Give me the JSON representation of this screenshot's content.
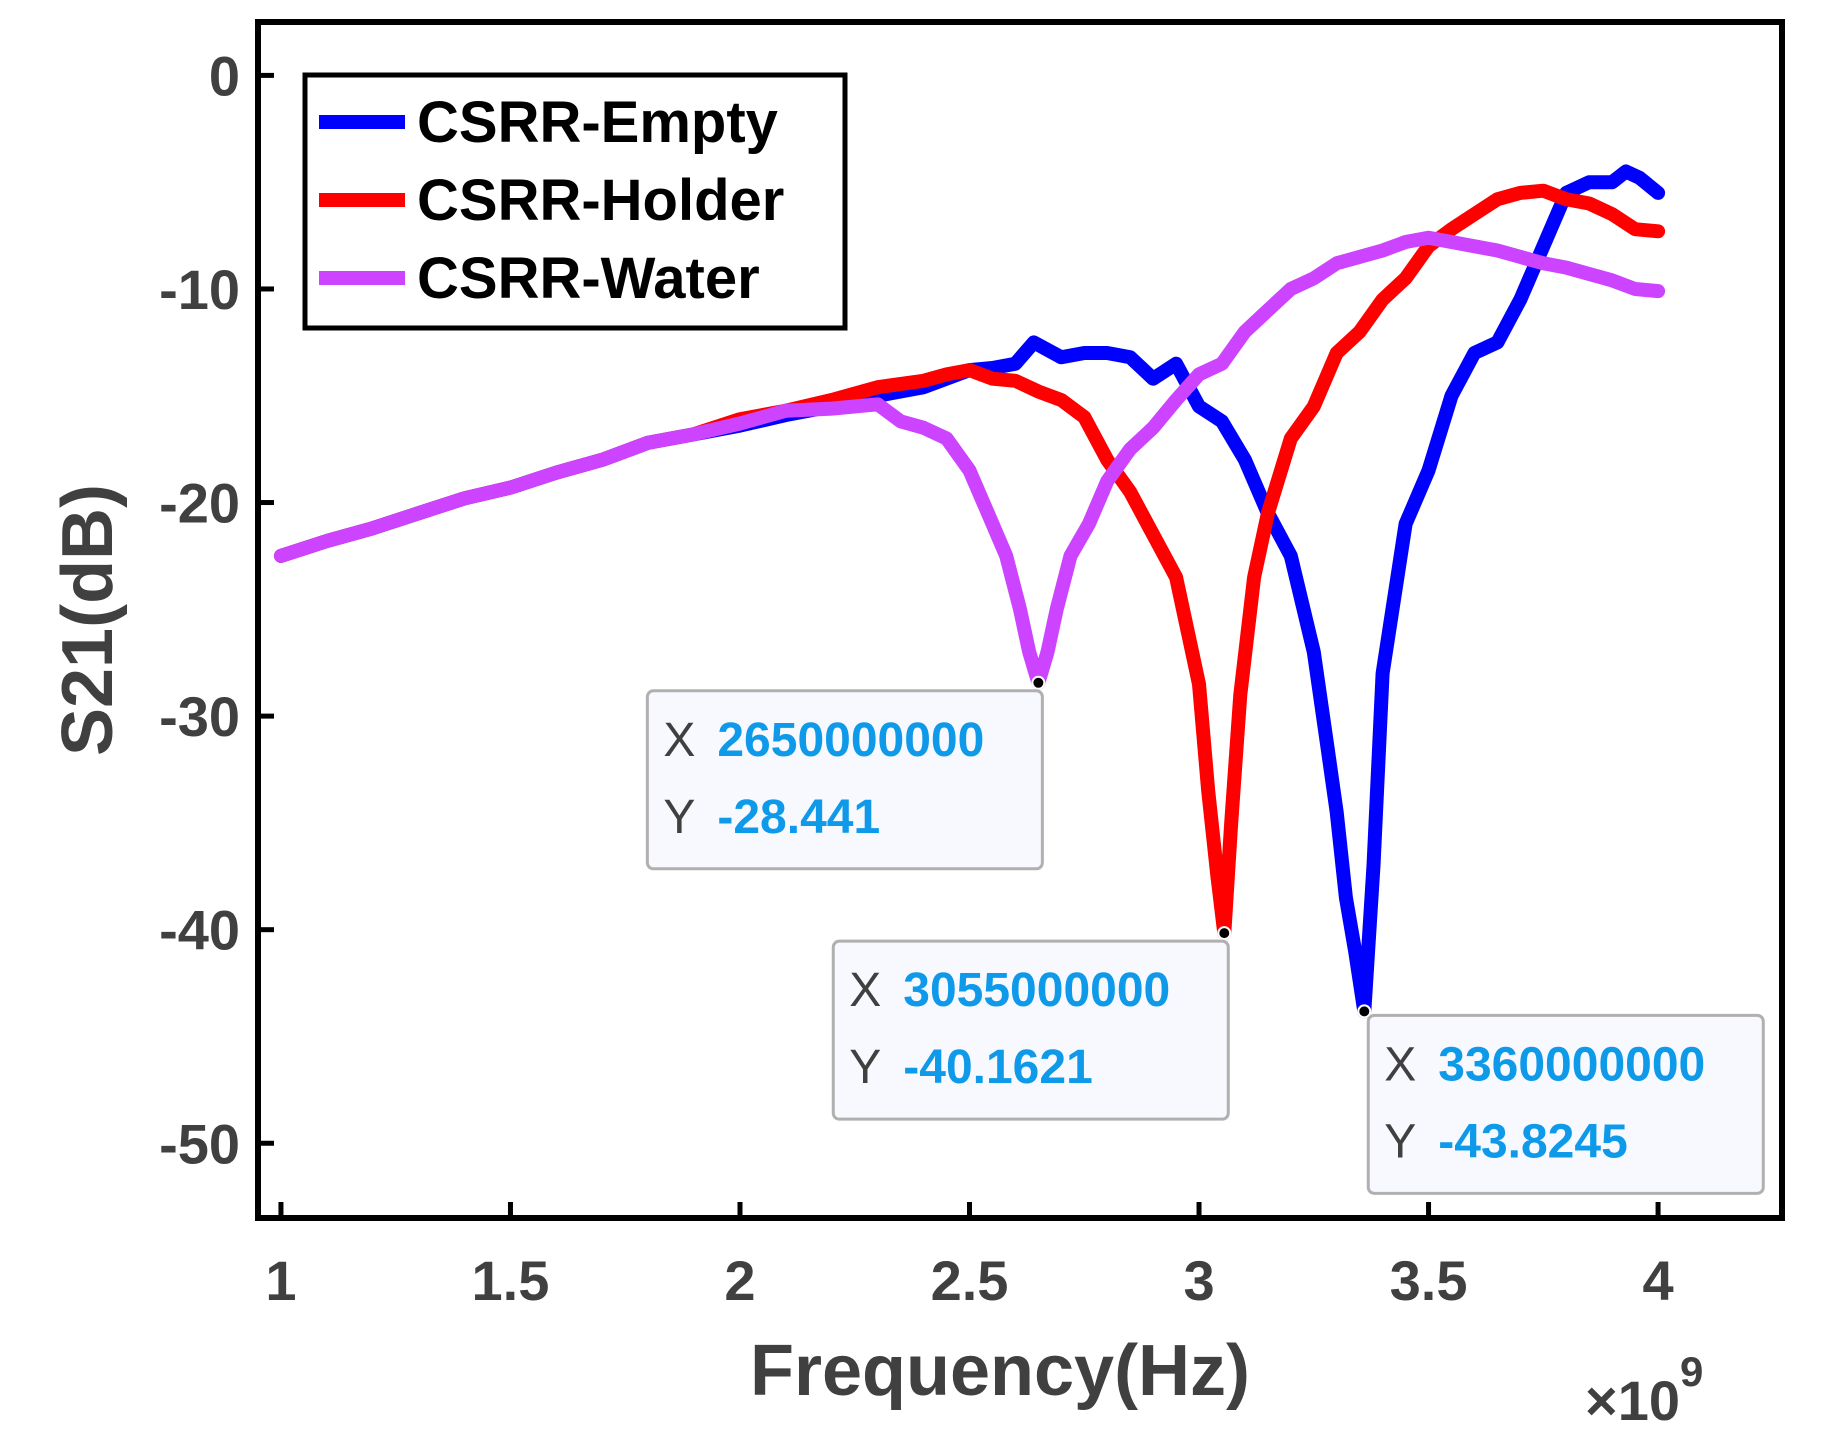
{
  "chart_data": {
    "type": "line",
    "xlabel": "Frequency(Hz)",
    "ylabel": "S21(dB)",
    "x_exponent_label": "×10",
    "x_exponent_power": "9",
    "xlim": [
      0.95,
      4.27
    ],
    "ylim": [
      -53.5,
      2.5
    ],
    "x_ticks": [
      1,
      1.5,
      2,
      2.5,
      3,
      3.5,
      4
    ],
    "x_tick_labels": [
      "1",
      "1.5",
      "2",
      "2.5",
      "3",
      "3.5",
      "4"
    ],
    "y_ticks": [
      0,
      -10,
      -20,
      -30,
      -40,
      -50
    ],
    "y_tick_labels": [
      "0",
      "-10",
      "-20",
      "-30",
      "-40",
      "-50"
    ],
    "legend_position": "top-left",
    "grid": false,
    "series": [
      {
        "name": "CSRR-Empty",
        "color": "#0000ff",
        "x": [
          1.0,
          1.1,
          1.2,
          1.3,
          1.4,
          1.5,
          1.6,
          1.7,
          1.8,
          1.9,
          2.0,
          2.1,
          2.2,
          2.3,
          2.4,
          2.5,
          2.55,
          2.6,
          2.64,
          2.7,
          2.75,
          2.8,
          2.85,
          2.9,
          2.95,
          3.0,
          3.05,
          3.1,
          3.15,
          3.2,
          3.25,
          3.28,
          3.3,
          3.32,
          3.34,
          3.36,
          3.38,
          3.4,
          3.45,
          3.5,
          3.55,
          3.6,
          3.65,
          3.7,
          3.75,
          3.8,
          3.85,
          3.9,
          3.93,
          3.96,
          4.0
        ],
        "y": [
          -22.5,
          -21.8,
          -21.2,
          -20.5,
          -19.8,
          -19.3,
          -18.6,
          -18.0,
          -17.2,
          -16.8,
          -16.4,
          -15.9,
          -15.5,
          -15.0,
          -14.6,
          -13.8,
          -13.7,
          -13.5,
          -12.5,
          -13.2,
          -13.0,
          -13.0,
          -13.2,
          -14.2,
          -13.5,
          -15.5,
          -16.2,
          -18.0,
          -20.5,
          -22.5,
          -27.0,
          -31.5,
          -34.5,
          -38.5,
          -41.0,
          -43.82,
          -37.0,
          -28.0,
          -21.0,
          -18.5,
          -15.0,
          -13.0,
          -12.5,
          -10.5,
          -8.0,
          -5.5,
          -5.0,
          -5.0,
          -4.5,
          -4.8,
          -5.5
        ]
      },
      {
        "name": "CSRR-Holder",
        "color": "#ff0000",
        "x": [
          1.0,
          1.1,
          1.2,
          1.3,
          1.4,
          1.5,
          1.6,
          1.7,
          1.8,
          1.9,
          2.0,
          2.1,
          2.2,
          2.3,
          2.4,
          2.45,
          2.5,
          2.55,
          2.6,
          2.65,
          2.7,
          2.75,
          2.8,
          2.85,
          2.9,
          2.95,
          3.0,
          3.02,
          3.04,
          3.055,
          3.07,
          3.09,
          3.12,
          3.15,
          3.2,
          3.25,
          3.3,
          3.35,
          3.4,
          3.45,
          3.5,
          3.55,
          3.6,
          3.65,
          3.7,
          3.75,
          3.8,
          3.85,
          3.9,
          3.95,
          4.0
        ],
        "y": [
          -22.5,
          -21.8,
          -21.2,
          -20.5,
          -19.8,
          -19.3,
          -18.6,
          -18.0,
          -17.2,
          -16.8,
          -16.1,
          -15.7,
          -15.2,
          -14.6,
          -14.3,
          -14.0,
          -13.8,
          -14.2,
          -14.3,
          -14.8,
          -15.2,
          -16.0,
          -18.0,
          -19.5,
          -21.5,
          -23.5,
          -28.5,
          -33.5,
          -37.5,
          -40.16,
          -35.0,
          -29.0,
          -23.5,
          -20.5,
          -17.0,
          -15.5,
          -13.0,
          -12.0,
          -10.5,
          -9.5,
          -8.0,
          -7.2,
          -6.5,
          -5.8,
          -5.5,
          -5.4,
          -5.8,
          -6.0,
          -6.5,
          -7.2,
          -7.3
        ]
      },
      {
        "name": "CSRR-Water",
        "color": "#cc44ff",
        "x": [
          1.0,
          1.1,
          1.2,
          1.3,
          1.4,
          1.5,
          1.6,
          1.7,
          1.8,
          1.9,
          2.0,
          2.1,
          2.2,
          2.3,
          2.35,
          2.4,
          2.45,
          2.5,
          2.55,
          2.58,
          2.61,
          2.63,
          2.65,
          2.67,
          2.69,
          2.72,
          2.76,
          2.8,
          2.85,
          2.9,
          2.95,
          3.0,
          3.05,
          3.1,
          3.15,
          3.2,
          3.25,
          3.3,
          3.35,
          3.4,
          3.45,
          3.5,
          3.55,
          3.6,
          3.65,
          3.7,
          3.75,
          3.8,
          3.85,
          3.9,
          3.95,
          4.0
        ],
        "y": [
          -22.5,
          -21.8,
          -21.2,
          -20.5,
          -19.8,
          -19.3,
          -18.6,
          -18.0,
          -17.2,
          -16.8,
          -16.3,
          -15.7,
          -15.6,
          -15.4,
          -16.2,
          -16.5,
          -17.0,
          -18.5,
          -21.0,
          -22.5,
          -25.0,
          -27.0,
          -28.44,
          -27.0,
          -25.0,
          -22.5,
          -21.0,
          -19.0,
          -17.5,
          -16.5,
          -15.2,
          -14.0,
          -13.5,
          -12.0,
          -11.0,
          -10.0,
          -9.5,
          -8.8,
          -8.5,
          -8.2,
          -7.8,
          -7.6,
          -7.8,
          -8.0,
          -8.2,
          -8.5,
          -8.8,
          -9.0,
          -9.3,
          -9.6,
          -10.0,
          -10.1
        ]
      }
    ],
    "data_tips": [
      {
        "series": "CSRR-Water",
        "x": 2650000000,
        "y": -28.441,
        "x_key": "X",
        "y_key": "Y",
        "x_text": "2650000000",
        "y_text": "-28.441"
      },
      {
        "series": "CSRR-Holder",
        "x": 3055000000,
        "y": -40.1621,
        "x_key": "X",
        "y_key": "Y",
        "x_text": "3055000000",
        "y_text": "-40.1621"
      },
      {
        "series": "CSRR-Empty",
        "x": 3360000000,
        "y": -43.8245,
        "x_key": "X",
        "y_key": "Y",
        "x_text": "3360000000",
        "y_text": "-43.8245"
      }
    ]
  }
}
